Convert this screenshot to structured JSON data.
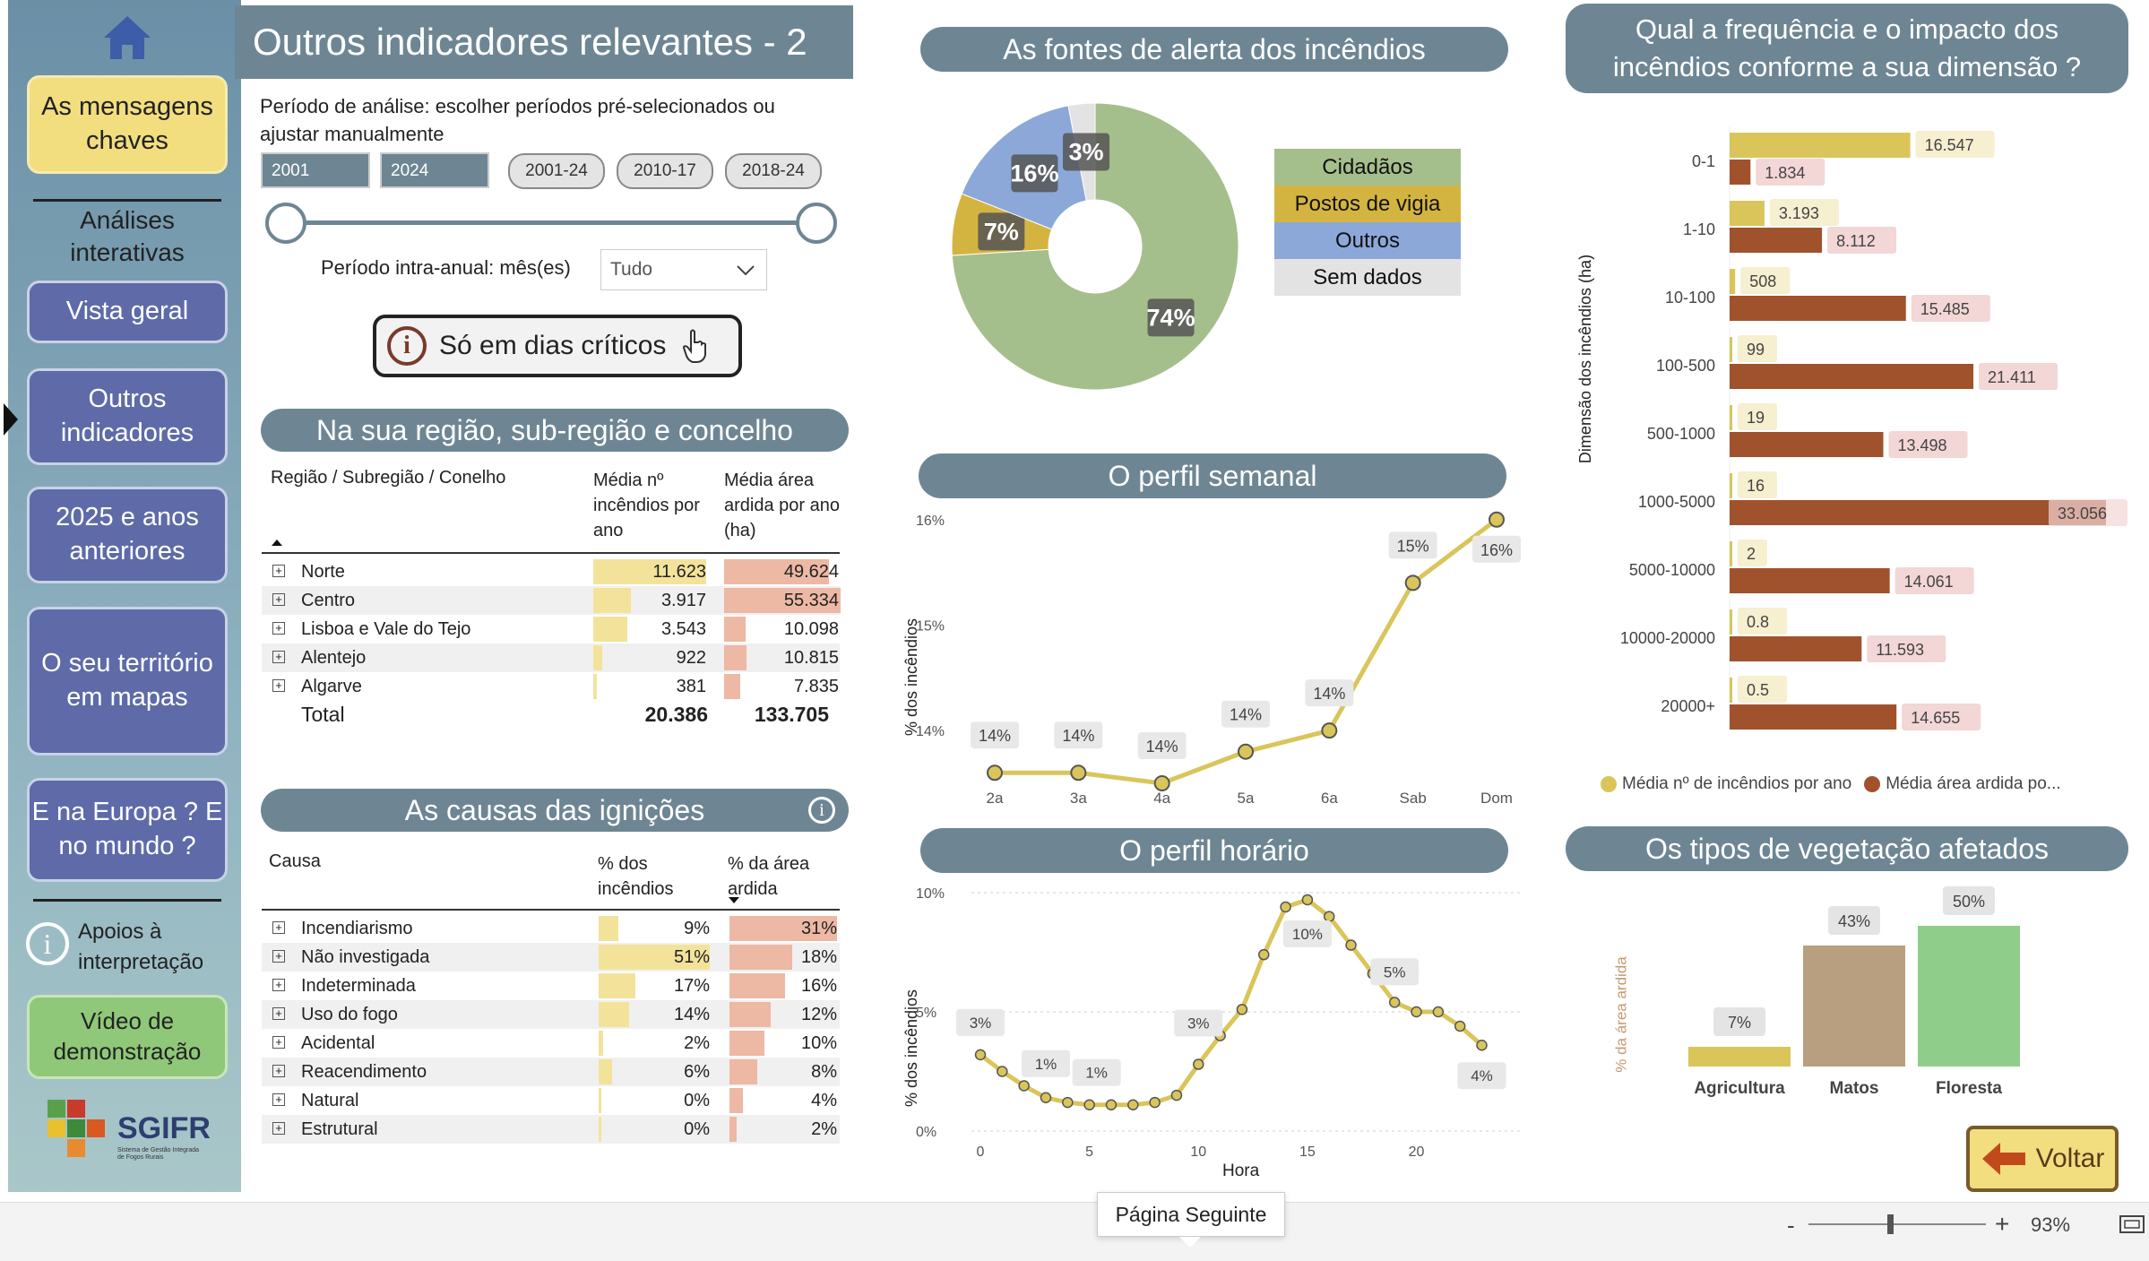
{
  "sidebar": {
    "key_messages": "As mensagens chaves",
    "analysis_heading": "Análises interativas",
    "overview": "Vista geral",
    "other_indicators": "Outros indicadores",
    "year_2025": "2025 e anos anteriores",
    "territory_maps": "O seu território em mapas",
    "europe_world": "E na Europa ? E no mundo ?",
    "support": "Apoios à interpretação",
    "video": "Vídeo de demonstração",
    "logo_text": "SGIFR",
    "logo_sub": "Sistema de Gestão Integrada de Fogos Rurais"
  },
  "page_title": "Outros indicadores relevantes - 2",
  "filters": {
    "period_label": "Período de análise: escolher períodos pré-selecionados ou ajustar manualmente",
    "start_year": "2001",
    "end_year": "2024",
    "presets": [
      "2001-24",
      "2010-17",
      "2018-24"
    ],
    "intra_label": "Período intra-anual: mês(es)",
    "month_value": "Tudo",
    "critical_days": "Só em dias críticos"
  },
  "region": {
    "title": "Na sua região, sub-região e concelho",
    "col1": "Região / Subregião / Conelho",
    "col2": "Média nº incêndios por ano",
    "col3": "Média área ardida por ano (ha)",
    "rows": [
      {
        "name": "Norte",
        "n": "11.623",
        "a": "49.624",
        "nv": 11623,
        "av": 49624
      },
      {
        "name": "Centro",
        "n": "3.917",
        "a": "55.334",
        "nv": 3917,
        "av": 55334
      },
      {
        "name": "Lisboa e Vale do Tejo",
        "n": "3.543",
        "a": "10.098",
        "nv": 3543,
        "av": 10098
      },
      {
        "name": "Alentejo",
        "n": "922",
        "a": "10.815",
        "nv": 922,
        "av": 10815
      },
      {
        "name": "Algarve",
        "n": "381",
        "a": "7.835",
        "nv": 381,
        "av": 7835
      }
    ],
    "total_label": "Total",
    "total_n": "20.386",
    "total_a": "133.705"
  },
  "causes": {
    "title": "As causas das ignições",
    "col1": "Causa",
    "col2": "% dos incêndios",
    "col3": "% da área ardida",
    "rows": [
      {
        "name": "Incendiarismo",
        "p": "9%",
        "a": "31%",
        "pv": 9,
        "av": 31
      },
      {
        "name": "Não investigada",
        "p": "51%",
        "a": "18%",
        "pv": 51,
        "av": 18
      },
      {
        "name": "Indeterminada",
        "p": "17%",
        "a": "16%",
        "pv": 17,
        "av": 16
      },
      {
        "name": "Uso do fogo",
        "p": "14%",
        "a": "12%",
        "pv": 14,
        "av": 12
      },
      {
        "name": "Acidental",
        "p": "2%",
        "a": "10%",
        "pv": 2,
        "av": 10
      },
      {
        "name": "Reacendimento",
        "p": "6%",
        "a": "8%",
        "pv": 6,
        "av": 8
      },
      {
        "name": "Natural",
        "p": "0%",
        "a": "4%",
        "pv": 0,
        "av": 4
      },
      {
        "name": "Estrutural",
        "p": "0%",
        "a": "2%",
        "pv": 0,
        "av": 2
      }
    ]
  },
  "alert": {
    "title": "As fontes de alerta dos incêndios"
  },
  "weekly": {
    "title": "O perfil semanal",
    "ylabel": "% dos incêndios"
  },
  "hourly": {
    "title": "O perfil horário",
    "ylabel": "% dos incêndios",
    "xlabel": "Hora"
  },
  "size": {
    "title": "Qual a frequência e o impacto dos incêndios conforme a sua dimensão ?",
    "ylabel": "Dimensão dos incêndios (ha)",
    "legend1": "Média nº de incêndios por ano",
    "legend2": "Média área ardida po..."
  },
  "veg": {
    "title": "Os tipos de vegetação afetados",
    "ylabel": "% da área ardida"
  },
  "back_button": "Voltar",
  "tooltip": "Página Seguinte",
  "zoom": "93%",
  "colors": {
    "accent": "#6e8694",
    "yellow": "#d9c55a",
    "brown": "#a0522d",
    "green": "#a5bf8c",
    "nav": "#5e6ba8"
  },
  "chart_data": [
    {
      "type": "pie",
      "title": "As fontes de alerta dos incêndios",
      "categories": [
        "Cidadãos",
        "Postos de vigia",
        "Outros",
        "Sem dados"
      ],
      "values": [
        74,
        7,
        16,
        3
      ],
      "colors": [
        "#a5bf8c",
        "#d4b440",
        "#8ba8d8",
        "#e3e3e3"
      ],
      "legend": "right"
    },
    {
      "type": "line",
      "title": "O perfil semanal",
      "categories": [
        "2a",
        "3a",
        "4a",
        "5a",
        "6a",
        "Sab",
        "Dom"
      ],
      "values": [
        13.6,
        13.6,
        13.5,
        13.8,
        14.0,
        15.4,
        16.0
      ],
      "labels": [
        "14%",
        "14%",
        "14%",
        "14%",
        "14%",
        "15%",
        "16%"
      ],
      "yticks": [
        "14%",
        "15%",
        "16%"
      ],
      "ylim": [
        13.5,
        16.1
      ],
      "ylabel": "% dos incêndios"
    },
    {
      "type": "line",
      "title": "O perfil horário",
      "x": [
        0,
        1,
        2,
        3,
        4,
        5,
        6,
        7,
        8,
        9,
        10,
        11,
        12,
        13,
        14,
        15,
        16,
        17,
        18,
        19,
        20,
        21,
        22,
        23
      ],
      "values": [
        3.2,
        2.5,
        1.9,
        1.4,
        1.2,
        1.1,
        1.1,
        1.1,
        1.2,
        1.5,
        2.8,
        4.0,
        5.1,
        7.4,
        9.4,
        9.7,
        9.0,
        7.8,
        6.6,
        5.4,
        5.0,
        5.0,
        4.4,
        3.6
      ],
      "labels": [
        {
          "x": 0,
          "t": "3%"
        },
        {
          "x": 3,
          "t": "1%"
        },
        {
          "x": 5,
          "t": "1%"
        },
        {
          "x": 10,
          "t": "3%"
        },
        {
          "x": 15,
          "t": "10%"
        },
        {
          "x": 19,
          "t": "5%"
        },
        {
          "x": 23,
          "t": "4%"
        }
      ],
      "ylim": [
        0,
        10
      ],
      "yticks": [
        "0%",
        "5%",
        "10%"
      ],
      "xticks": [
        0,
        5,
        10,
        15,
        20
      ],
      "xlabel": "Hora",
      "ylabel": "% dos incêndios"
    },
    {
      "type": "bar",
      "title": "Qual a frequência e o impacto dos incêndios conforme a sua dimensão ?",
      "categories": [
        "0-1",
        "1-10",
        "10-100",
        "100-500",
        "500-1000",
        "1000-5000",
        "5000-10000",
        "10000-20000",
        "20000+"
      ],
      "series": [
        {
          "name": "Média nº de incêndios por ano",
          "values": [
            16547,
            3193,
            508,
            99,
            19,
            16,
            2,
            0.8,
            0.5
          ],
          "labels": [
            "16.547",
            "3.193",
            "508",
            "99",
            "19",
            "16",
            "2",
            "0.8",
            "0.5"
          ]
        },
        {
          "name": "Média área ardida po...",
          "values": [
            1834,
            8112,
            15485,
            21411,
            13498,
            33056,
            14061,
            11593,
            14655
          ],
          "labels": [
            "1.834",
            "8.112",
            "15.485",
            "21.411",
            "13.498",
            "33.056",
            "14.061",
            "11.593",
            "14.655"
          ]
        }
      ],
      "ylabel": "Dimensão dos incêndios (ha)"
    },
    {
      "type": "bar",
      "title": "Os tipos de vegetação afetados",
      "categories": [
        "Agricultura",
        "Matos",
        "Floresta"
      ],
      "values": [
        7,
        43,
        50
      ],
      "labels": [
        "7%",
        "43%",
        "50%"
      ],
      "colors": [
        "#d9c55a",
        "#b89f7f",
        "#8fce8a"
      ],
      "ylabel": "% da área ardida"
    }
  ]
}
